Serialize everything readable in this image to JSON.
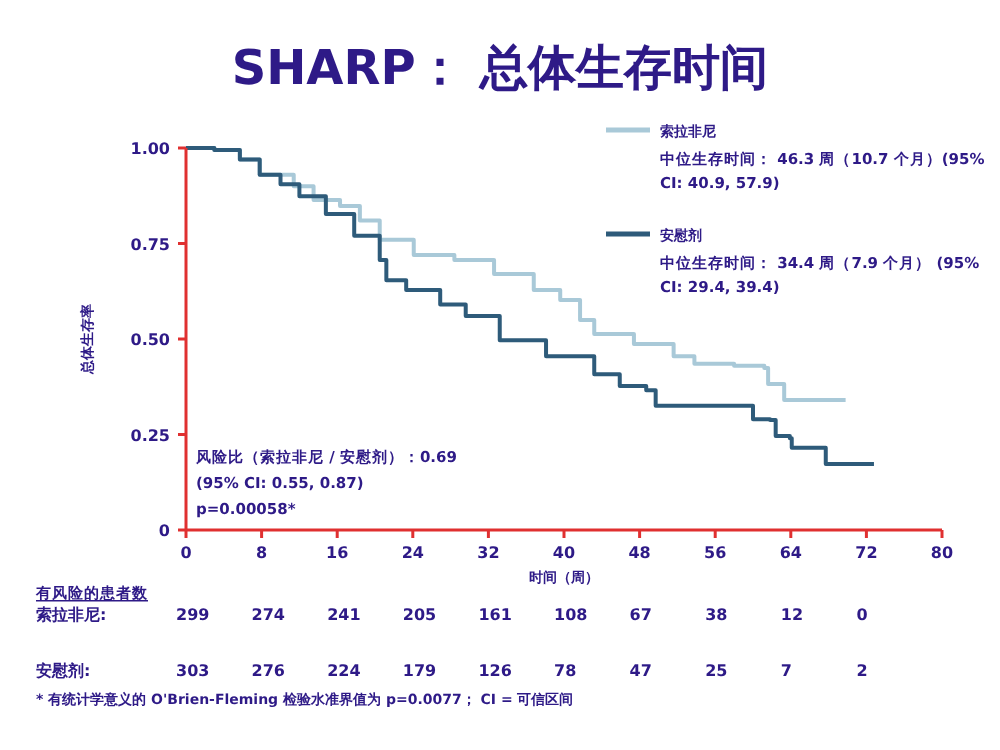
{
  "chart_data": {
    "type": "step",
    "title": "SHARP： 总体生存时间",
    "xlabel": "时间（周）",
    "ylabel": "总体生存率",
    "xlim": [
      0,
      80
    ],
    "xticks": [
      0,
      8,
      16,
      24,
      32,
      40,
      48,
      56,
      64,
      72,
      80
    ],
    "ylim": [
      0,
      1
    ],
    "yticks": [
      0,
      {
        "value": 0.25,
        "label": "0.25"
      },
      {
        "value": 0.5,
        "label": "0.50"
      },
      {
        "value": 0.75,
        "label": "0.75"
      },
      {
        "value": 1,
        "label": "1.00"
      }
    ],
    "legend": "top right",
    "grid": false,
    "series": [
      {
        "name": "索拉非尼",
        "color": "#a9c9d8",
        "x": [
          0,
          3,
          5.7,
          7.8,
          11.4,
          13.5,
          16.3,
          18.4,
          20.5,
          24.1,
          28.4,
          32.6,
          36.8,
          39.6,
          41.7,
          43.2,
          47.4,
          51.6,
          53.8,
          58,
          61.2,
          61.6,
          63.3,
          69.8
        ],
        "values": [
          1,
          0.995,
          0.97,
          0.93,
          0.9,
          0.864,
          0.848,
          0.81,
          0.76,
          0.72,
          0.707,
          0.67,
          0.628,
          0.602,
          0.55,
          0.513,
          0.487,
          0.455,
          0.435,
          0.43,
          0.424,
          0.382,
          0.34,
          0.34
        ]
      },
      {
        "name": "安慰剂",
        "color": "#2e5b7a",
        "x": [
          0,
          3,
          5.7,
          7.8,
          10,
          12,
          14.8,
          17.8,
          20.5,
          21.2,
          23.3,
          26.9,
          29.6,
          33.2,
          38.1,
          43.2,
          45.9,
          48.7,
          49.7,
          60,
          61.8,
          62.4,
          63.9,
          64.1,
          67.7,
          72.8
        ],
        "values": [
          1,
          0.995,
          0.97,
          0.93,
          0.905,
          0.874,
          0.827,
          0.77,
          0.707,
          0.654,
          0.628,
          0.59,
          0.56,
          0.497,
          0.455,
          0.408,
          0.377,
          0.366,
          0.325,
          0.29,
          0.288,
          0.246,
          0.24,
          0.215,
          0.173,
          0.173
        ]
      }
    ],
    "annotations": [
      "中位生存时间： 46.3 周（10.7 个月）(95% CI: 40.9, 57.9)",
      "中位生存时间： 34.4 周（7.9 个月） (95% CI: 29.4, 39.4)",
      "风险比（索拉非尼 / 安慰剂）：0.69",
      "(95% CI: 0.55, 0.87)",
      "p=0.00058*",
      "有风险的患者数",
      "索拉非尼:",
      "299",
      "274",
      "241",
      "205",
      "161",
      "108",
      "67",
      "38",
      "12",
      "0",
      "安慰剂:",
      "303",
      "276",
      "224",
      "179",
      "126",
      "78",
      "47",
      "25",
      "7",
      "2",
      "* 有统计学意义的 O'Brien-Fleming 检验水准界值为 p=0.0077； CI = 可信区间"
    ]
  }
}
